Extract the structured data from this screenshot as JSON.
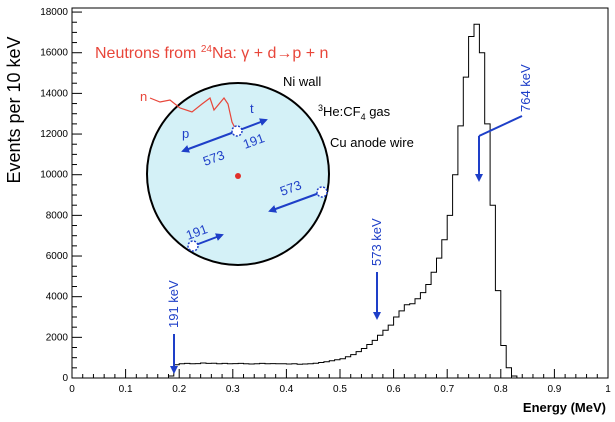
{
  "chart_data": {
    "type": "histogram",
    "title": "",
    "xlabel": "Energy (MeV)",
    "ylabel": "Events per 10 keV",
    "xlim": [
      0,
      1.0
    ],
    "ylim": [
      0,
      18200
    ],
    "x_ticks": [
      "0",
      "0.1",
      "0.2",
      "0.3",
      "0.4",
      "0.5",
      "0.6",
      "0.7",
      "0.8",
      "0.9",
      "1"
    ],
    "y_ticks": [
      "0",
      "2000",
      "4000",
      "6000",
      "8000",
      "10000",
      "12000",
      "14000",
      "16000",
      "18000"
    ],
    "grid": false,
    "bin_width": 0.01,
    "x": [
      0.18,
      0.19,
      0.2,
      0.21,
      0.22,
      0.23,
      0.24,
      0.25,
      0.26,
      0.27,
      0.28,
      0.29,
      0.3,
      0.31,
      0.32,
      0.33,
      0.34,
      0.35,
      0.36,
      0.37,
      0.38,
      0.39,
      0.4,
      0.41,
      0.42,
      0.43,
      0.44,
      0.45,
      0.46,
      0.47,
      0.48,
      0.49,
      0.5,
      0.51,
      0.52,
      0.53,
      0.54,
      0.55,
      0.56,
      0.57,
      0.58,
      0.59,
      0.6,
      0.61,
      0.62,
      0.63,
      0.64,
      0.65,
      0.66,
      0.67,
      0.68,
      0.69,
      0.7,
      0.71,
      0.72,
      0.73,
      0.74,
      0.75,
      0.76,
      0.77,
      0.78,
      0.79,
      0.8,
      0.81,
      0.82
    ],
    "values": [
      100,
      650,
      700,
      720,
      700,
      710,
      740,
      720,
      730,
      700,
      720,
      700,
      710,
      720,
      700,
      690,
      700,
      720,
      700,
      710,
      700,
      700,
      690,
      700,
      680,
      690,
      700,
      730,
      760,
      800,
      850,
      900,
      950,
      1050,
      1150,
      1300,
      1450,
      1650,
      1850,
      2100,
      2350,
      2600,
      3000,
      3300,
      3600,
      3650,
      3900,
      4200,
      4600,
      5200,
      5900,
      6800,
      8000,
      10000,
      12400,
      14800,
      16800,
      17400,
      16000,
      12500,
      8500,
      4300,
      1600,
      500,
      100
    ],
    "annotations": {
      "title_text": "Neutrons from ",
      "isotope_mass": "24",
      "reaction": "Na: γ + d→p + n",
      "ni_wall": "Ni wall",
      "gas_mass": "3",
      "gas_a": "He:CF",
      "gas_sub": "4",
      "gas_b": " gas",
      "cu_wire": "Cu anode wire",
      "n_label": "n",
      "p_label": "p",
      "t_label": "t",
      "e573_a": "573",
      "e191_a": "191",
      "e573_b": "573",
      "e191_b": "191",
      "peak_764": "764 keV",
      "peak_573": "573 keV",
      "peak_191": "191 keV"
    },
    "colors": {
      "line": "#000000",
      "arrow": "#1e3fc8",
      "red": "#e8463a",
      "circle_fill": "#d4f1f7"
    }
  }
}
